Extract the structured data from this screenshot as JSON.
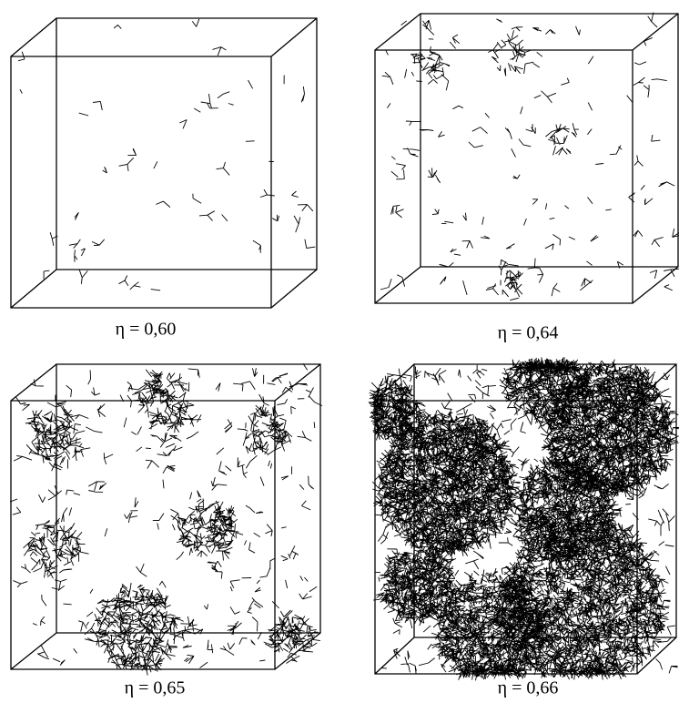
{
  "panels": [
    {
      "caption": "η = 0,60"
    },
    {
      "caption": "η = 0,64"
    },
    {
      "caption": "η = 0,65"
    },
    {
      "caption": "η = 0,66"
    }
  ]
}
